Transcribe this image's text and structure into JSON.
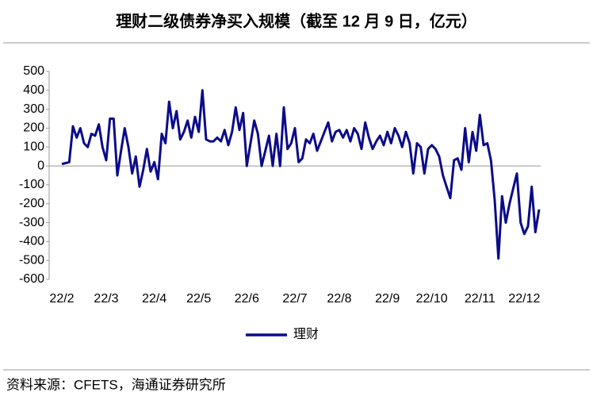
{
  "chart_data": {
    "type": "line",
    "title": "理财二级债券净买入规模（截至 12 月 9 日，亿元）",
    "source": "资料来源：CFETS，海通证券研究所",
    "categories": [
      "22/2",
      null,
      null,
      null,
      null,
      null,
      null,
      null,
      null,
      null,
      null,
      null,
      "22/3",
      null,
      null,
      null,
      null,
      null,
      null,
      null,
      null,
      null,
      null,
      null,
      null,
      "22/4",
      null,
      null,
      null,
      null,
      null,
      null,
      null,
      null,
      null,
      null,
      null,
      "22/5",
      null,
      null,
      null,
      null,
      null,
      null,
      null,
      null,
      null,
      null,
      null,
      null,
      "22/6",
      null,
      null,
      null,
      null,
      null,
      null,
      null,
      null,
      null,
      null,
      null,
      null,
      "22/7",
      null,
      null,
      null,
      null,
      null,
      null,
      null,
      null,
      null,
      null,
      null,
      "22/8",
      null,
      null,
      null,
      null,
      null,
      null,
      null,
      null,
      null,
      null,
      null,
      null,
      "22/9",
      null,
      null,
      null,
      null,
      null,
      null,
      null,
      null,
      null,
      null,
      null,
      "22/10",
      null,
      null,
      null,
      null,
      null,
      null,
      null,
      null,
      null,
      null,
      null,
      null,
      "22/11",
      null,
      null,
      null,
      null,
      null,
      null,
      null,
      null,
      null,
      null,
      null,
      "22/12",
      null,
      null,
      null,
      null
    ],
    "series": [
      {
        "name": "理财",
        "color": "#0b0b8a",
        "values": [
          10,
          15,
          20,
          210,
          150,
          200,
          120,
          100,
          170,
          160,
          220,
          100,
          30,
          250,
          250,
          -50,
          80,
          200,
          100,
          -40,
          50,
          -110,
          -20,
          90,
          -30,
          20,
          -70,
          170,
          120,
          340,
          200,
          290,
          140,
          180,
          240,
          150,
          260,
          180,
          400,
          140,
          130,
          130,
          150,
          130,
          190,
          110,
          180,
          310,
          190,
          280,
          0,
          120,
          240,
          170,
          0,
          80,
          160,
          0,
          170,
          0,
          310,
          90,
          120,
          200,
          20,
          40,
          140,
          120,
          170,
          80,
          130,
          180,
          230,
          130,
          180,
          190,
          150,
          190,
          130,
          200,
          170,
          90,
          230,
          150,
          90,
          130,
          160,
          110,
          180,
          120,
          200,
          160,
          100,
          180,
          120,
          -40,
          120,
          100,
          -40,
          90,
          110,
          90,
          50,
          -50,
          -110,
          -170,
          30,
          40,
          -20,
          200,
          20,
          180,
          80,
          270,
          110,
          120,
          30,
          -180,
          -490,
          -160,
          -300,
          -200,
          -120,
          -40,
          -300,
          -360,
          -320,
          -110,
          -350,
          -230
        ]
      }
    ],
    "ylim": [
      -600,
      500
    ],
    "yticks": [
      -600,
      -500,
      -400,
      -300,
      -200,
      -100,
      0,
      100,
      200,
      300,
      400,
      500
    ],
    "legend": "bottom"
  }
}
